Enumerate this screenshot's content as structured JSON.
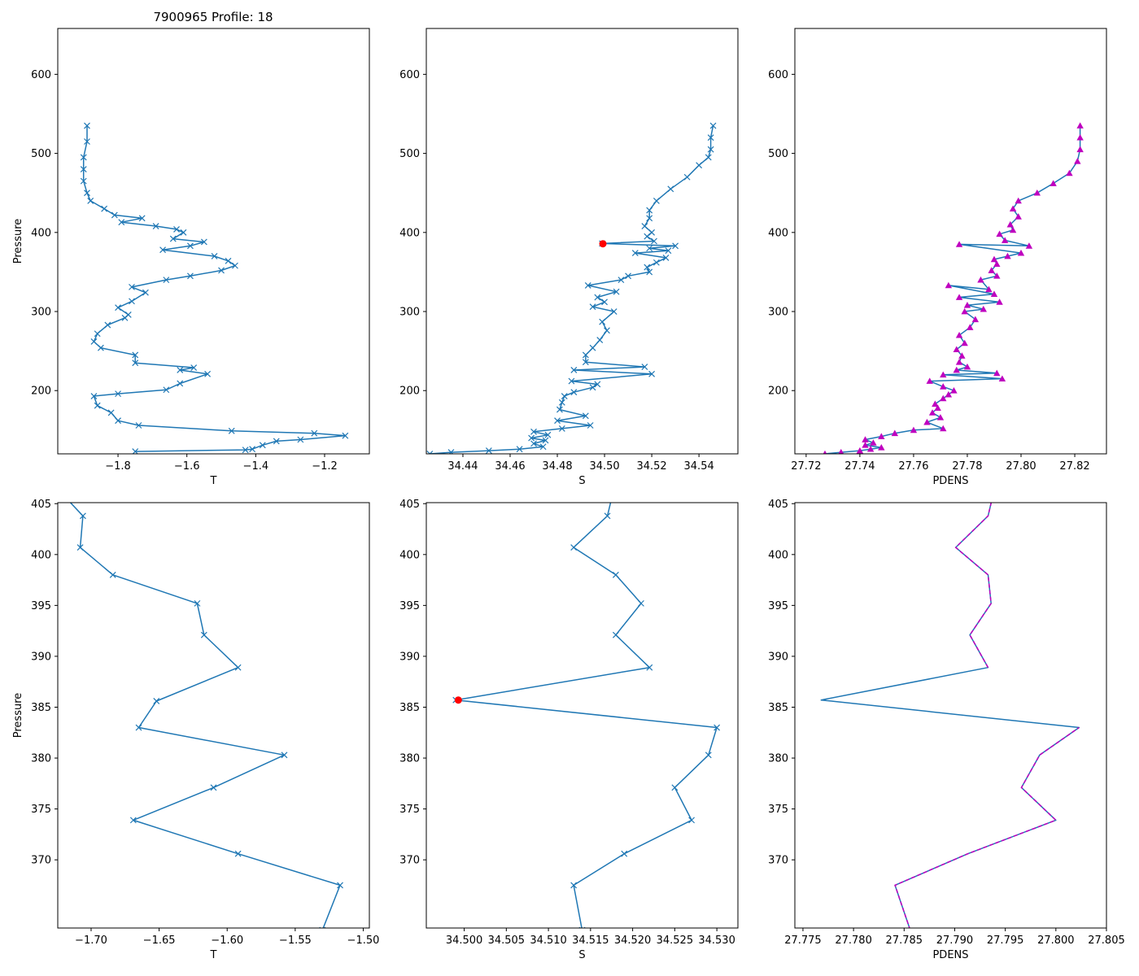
{
  "figure": {
    "title": "7900965 Profile: 18",
    "colors": {
      "line": "#1f77b4",
      "pdens_marker": "#bf00bf",
      "pdens_dash": "#bf00bf",
      "flag": "#ff0000",
      "axis": "#000000"
    }
  },
  "chart_data": [
    {
      "id": "top-T",
      "type": "line",
      "marker": "x",
      "xlabel": "T",
      "ylabel": "Pressure",
      "xlim": [
        -1.975,
        -1.07
      ],
      "ylim": [
        658,
        120
      ],
      "xticks": [
        -1.8,
        -1.6,
        -1.4,
        -1.2
      ],
      "xtick_labels": [
        "−1.8",
        "−1.6",
        "−1.4",
        "−1.2"
      ],
      "yticks": [
        200,
        300,
        400,
        500,
        600
      ],
      "ytick_labels": [
        "200",
        "300",
        "400",
        "500",
        "600"
      ],
      "series": [
        {
          "name": "T",
          "x": [
            -1.75,
            -1.43,
            -1.41,
            -1.38,
            -1.34,
            -1.27,
            -1.14,
            -1.23,
            -1.47,
            -1.74,
            -1.8,
            -1.82,
            -1.86,
            -1.87,
            -1.8,
            -1.66,
            -1.62,
            -1.54,
            -1.62,
            -1.58,
            -1.75,
            -1.75,
            -1.85,
            -1.87,
            -1.86,
            -1.83,
            -1.78,
            -1.77,
            -1.8,
            -1.76,
            -1.72,
            -1.76,
            -1.66,
            -1.59,
            -1.5,
            -1.46,
            -1.48,
            -1.52,
            -1.67,
            -1.59,
            -1.55,
            -1.64,
            -1.61,
            -1.63,
            -1.69,
            -1.79,
            -1.73,
            -1.81,
            -1.84,
            -1.88,
            -1.89,
            -1.9,
            -1.9,
            -1.9,
            -1.89,
            -1.89
          ],
          "y": [
            123,
            125,
            126,
            131,
            136,
            138,
            143,
            146,
            149,
            156,
            162,
            172,
            181,
            193,
            196,
            201,
            209,
            221,
            226,
            229,
            235,
            245,
            254,
            262,
            272,
            283,
            292,
            296,
            305,
            313,
            324,
            331,
            340,
            345,
            352,
            358,
            364,
            370,
            378,
            383,
            388,
            392,
            400,
            404,
            408,
            413,
            418,
            422,
            430,
            440,
            450,
            465,
            480,
            495,
            515,
            535
          ]
        }
      ]
    },
    {
      "id": "top-S",
      "type": "line",
      "marker": "x",
      "xlabel": "S",
      "xlim": [
        34.4245,
        34.5565
      ],
      "ylim": [
        658,
        120
      ],
      "xticks": [
        34.44,
        34.46,
        34.48,
        34.5,
        34.52,
        34.54
      ],
      "xtick_labels": [
        "34.44",
        "34.46",
        "34.48",
        "34.50",
        "34.52",
        "34.54"
      ],
      "yticks": [
        200,
        300,
        400,
        500,
        600
      ],
      "ytick_labels": [
        "200",
        "300",
        "400",
        "500",
        "600"
      ],
      "series": [
        {
          "name": "S",
          "x": [
            34.426,
            34.435,
            34.451,
            34.464,
            34.474,
            34.47,
            34.475,
            34.469,
            34.476,
            34.47,
            34.482,
            34.494,
            34.48,
            34.492,
            34.481,
            34.482,
            34.483,
            34.487,
            34.495,
            34.497,
            34.486,
            34.52,
            34.487,
            34.517,
            34.492,
            34.492,
            34.495,
            34.498,
            34.501,
            34.499,
            34.504,
            34.495,
            34.5,
            34.497,
            34.505,
            34.493,
            34.507,
            34.51,
            34.519,
            34.518,
            34.522,
            34.526,
            34.513,
            34.527,
            34.519,
            34.53,
            34.499,
            34.521,
            34.518,
            34.52,
            34.517,
            34.519,
            34.519,
            34.522,
            34.528,
            34.535,
            34.54,
            34.544,
            34.545,
            34.545,
            34.546
          ],
          "y": [
            120,
            122,
            124,
            126,
            129,
            133,
            137,
            140,
            144,
            148,
            152,
            156,
            162,
            168,
            176,
            185,
            193,
            198,
            204,
            208,
            212,
            221,
            226,
            230,
            236,
            245,
            254,
            264,
            276,
            287,
            300,
            306,
            312,
            318,
            325,
            333,
            340,
            345,
            350,
            356,
            362,
            368,
            374,
            377,
            380,
            383,
            386,
            389,
            395,
            400,
            408,
            418,
            428,
            440,
            455,
            470,
            485,
            495,
            505,
            520,
            535
          ]
        }
      ],
      "flag_point": {
        "x": 34.4993,
        "y": 385.7
      }
    },
    {
      "id": "top-PDENS",
      "type": "line",
      "marker": "triangle",
      "xlabel": "PDENS",
      "xlim": [
        27.7158,
        27.8318
      ],
      "ylim": [
        658,
        120
      ],
      "xticks": [
        27.72,
        27.74,
        27.76,
        27.78,
        27.8,
        27.82
      ],
      "xtick_labels": [
        "27.72",
        "27.74",
        "27.76",
        "27.78",
        "27.80",
        "27.82"
      ],
      "yticks": [
        200,
        300,
        400,
        500,
        600
      ],
      "ytick_labels": [
        "200",
        "300",
        "400",
        "500",
        "600"
      ],
      "series": [
        {
          "name": "PDENS",
          "x": [
            27.727,
            27.733,
            27.74,
            27.744,
            27.748,
            27.742,
            27.745,
            27.742,
            27.748,
            27.753,
            27.76,
            27.771,
            27.765,
            27.77,
            27.767,
            27.769,
            27.768,
            27.771,
            27.773,
            27.775,
            27.771,
            27.766,
            27.793,
            27.771,
            27.791,
            27.776,
            27.78,
            27.777,
            27.778,
            27.776,
            27.779,
            27.777,
            27.781,
            27.783,
            27.779,
            27.786,
            27.78,
            27.792,
            27.777,
            27.79,
            27.773,
            27.788,
            27.785,
            27.791,
            27.789,
            27.791,
            27.79,
            27.795,
            27.8,
            27.777,
            27.803,
            27.794,
            27.792,
            27.797,
            27.796,
            27.799,
            27.797,
            27.799,
            27.806,
            27.812,
            27.818,
            27.821,
            27.822,
            27.822,
            27.822
          ],
          "y": [
            120,
            122,
            124,
            126,
            128,
            131,
            134,
            138,
            142,
            146,
            150,
            152,
            160,
            166,
            172,
            178,
            183,
            190,
            195,
            200,
            205,
            212,
            215,
            220,
            222,
            226,
            230,
            236,
            244,
            252,
            260,
            270,
            280,
            290,
            300,
            303,
            308,
            312,
            318,
            322,
            333,
            328,
            340,
            345,
            352,
            360,
            366,
            370,
            374,
            385,
            383,
            390,
            398,
            403,
            410,
            420,
            430,
            440,
            450,
            462,
            475,
            490,
            505,
            520,
            535
          ]
        }
      ]
    },
    {
      "id": "bottom-T",
      "type": "line",
      "marker": "x",
      "xlabel": "T",
      "ylabel": "Pressure",
      "xlim": [
        -1.7245,
        -1.4955
      ],
      "ylim": [
        405.1,
        363.3
      ],
      "xticks": [
        -1.7,
        -1.65,
        -1.6,
        -1.55,
        -1.5
      ],
      "xtick_labels": [
        "−1.70",
        "−1.65",
        "−1.60",
        "−1.55",
        "−1.50"
      ],
      "yticks": [
        370,
        375,
        380,
        385,
        390,
        395,
        400,
        405
      ],
      "ytick_labels": [
        "370",
        "375",
        "380",
        "385",
        "390",
        "395",
        "400",
        "405"
      ],
      "series": [
        {
          "name": "T",
          "x": [
            -1.53,
            -1.517,
            -1.592,
            -1.669,
            -1.61,
            -1.558,
            -1.665,
            -1.652,
            -1.592,
            -1.617,
            -1.622,
            -1.684,
            -1.708,
            -1.706,
            -1.718
          ],
          "y": [
            363.1,
            367.5,
            370.6,
            373.9,
            377.1,
            380.3,
            383.0,
            385.6,
            388.9,
            392.1,
            395.2,
            398.0,
            400.7,
            403.8,
            405.5
          ]
        }
      ]
    },
    {
      "id": "bottom-S",
      "type": "line",
      "marker": "x",
      "xlabel": "S",
      "xlim": [
        34.4955,
        34.5325
      ],
      "ylim": [
        405.1,
        363.3
      ],
      "xticks": [
        34.5,
        34.505,
        34.51,
        34.515,
        34.52,
        34.525,
        34.53
      ],
      "xtick_labels": [
        "34.500",
        "34.505",
        "34.510",
        "34.515",
        "34.520",
        "34.525",
        "34.530"
      ],
      "yticks": [
        370,
        375,
        380,
        385,
        390,
        395,
        400,
        405
      ],
      "ytick_labels": [
        "370",
        "375",
        "380",
        "385",
        "390",
        "395",
        "400",
        "405"
      ],
      "series": [
        {
          "name": "S",
          "x": [
            34.514,
            34.513,
            34.519,
            34.527,
            34.525,
            34.529,
            34.53,
            34.499,
            34.522,
            34.518,
            34.521,
            34.518,
            34.513,
            34.517,
            34.5175
          ],
          "y": [
            363.1,
            367.5,
            370.6,
            373.9,
            377.1,
            380.3,
            383.0,
            385.7,
            388.9,
            392.1,
            395.2,
            398.0,
            400.7,
            403.8,
            405.5
          ]
        }
      ],
      "flag_point": {
        "x": 34.4993,
        "y": 385.7
      }
    },
    {
      "id": "bottom-PDENS",
      "type": "line",
      "marker": "none",
      "xlabel": "PDENS",
      "xlim": [
        27.7742,
        27.805
      ],
      "ylim": [
        405.1,
        363.3
      ],
      "xticks": [
        27.775,
        27.78,
        27.785,
        27.79,
        27.795,
        27.8,
        27.805
      ],
      "xtick_labels": [
        "27.775",
        "27.780",
        "27.785",
        "27.790",
        "27.795",
        "27.800",
        "27.805"
      ],
      "yticks": [
        370,
        375,
        380,
        385,
        390,
        395,
        400,
        405
      ],
      "ytick_labels": [
        "370",
        "375",
        "380",
        "385",
        "390",
        "395",
        "400",
        "405"
      ],
      "series": [
        {
          "name": "PDENS",
          "x": [
            27.7856,
            27.7841,
            27.7913,
            27.8,
            27.7966,
            27.7984,
            27.8023,
            27.7768,
            27.7933,
            27.7915,
            27.7936,
            27.7933,
            27.7901,
            27.7933,
            27.7937
          ],
          "y": [
            363.1,
            367.5,
            370.6,
            373.9,
            377.1,
            380.3,
            383.0,
            385.7,
            388.9,
            392.1,
            395.2,
            398.0,
            400.7,
            403.8,
            405.5
          ]
        }
      ]
    }
  ]
}
